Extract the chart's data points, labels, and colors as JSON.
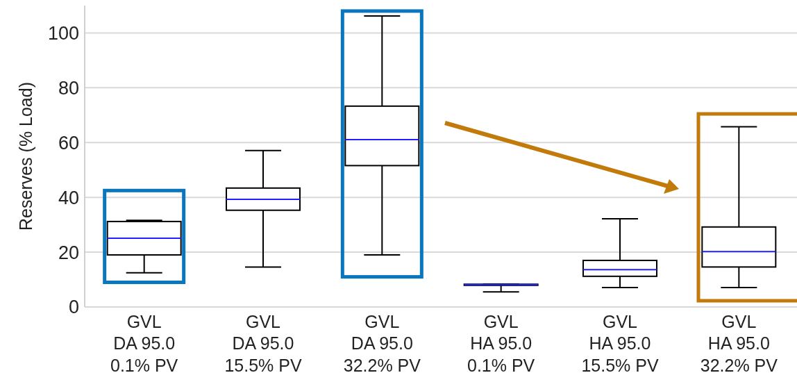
{
  "chart_data": {
    "type": "box",
    "ylabel": "Reserves (% Load)",
    "categories": [
      "GVL\nDA 95.0\n0.1% PV",
      "GVL\nDA 95.0\n15.5% PV",
      "GVL\nDA 95.0\n32.2% PV",
      "GVL\nHA 95.0\n0.1% PV",
      "GVL\nHA 95.0\n15.5% PV",
      "GVL\nHA 95.0\n32.2% PV"
    ],
    "boxes": [
      {
        "low": 12.5,
        "q1": 19.0,
        "median": 25.1,
        "q3": 31.2,
        "high": 31.6
      },
      {
        "low": 14.6,
        "q1": 35.3,
        "median": 39.3,
        "q3": 43.4,
        "high": 57.1
      },
      {
        "low": 19.0,
        "q1": 51.6,
        "median": 61.1,
        "q3": 73.3,
        "high": 106.2
      },
      {
        "low": 5.5,
        "q1": 7.9,
        "median": 8.1,
        "q3": 8.3,
        "high": 8.3
      },
      {
        "low": 7.1,
        "q1": 11.2,
        "median": 13.6,
        "q3": 17.0,
        "high": 32.2
      },
      {
        "low": 7.1,
        "q1": 14.6,
        "median": 20.2,
        "q3": 29.2,
        "high": 65.8
      }
    ],
    "color": "#000000",
    "ylim": [
      0,
      110
    ],
    "yticks": [
      0,
      20,
      40,
      60,
      80,
      100
    ],
    "grid": "y"
  }
}
